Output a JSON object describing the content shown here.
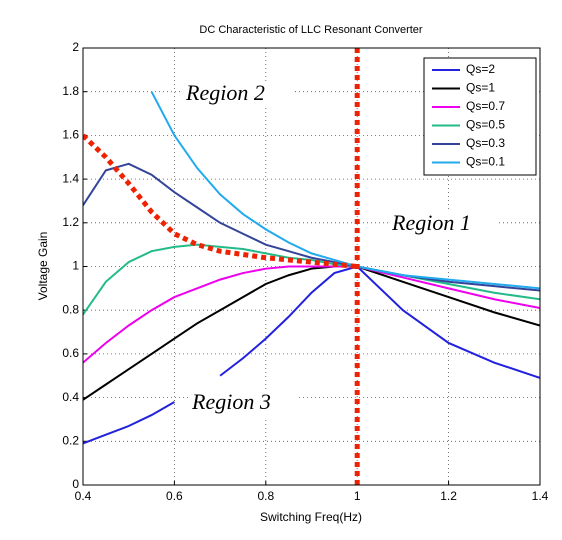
{
  "chart_data": {
    "type": "line",
    "title": "DC Characteristic of LLC Resonant Converter",
    "x_label": "Switching Freq(Hz)",
    "y_label": "Voltage Gain",
    "x": [
      0.4,
      0.45,
      0.5,
      0.55,
      0.6,
      0.65,
      0.7,
      0.75,
      0.8,
      0.85,
      0.9,
      0.95,
      1.0,
      1.1,
      1.2,
      1.3,
      1.4
    ],
    "series": [
      {
        "name": "Qs=2",
        "color": "#2222dd",
        "values": [
          0.19,
          0.23,
          0.27,
          0.32,
          0.38,
          null,
          0.5,
          0.58,
          0.67,
          0.77,
          0.88,
          0.97,
          1.0,
          0.8,
          0.65,
          0.56,
          0.49
        ]
      },
      {
        "name": "Qs=1",
        "color": "#000000",
        "values": [
          0.39,
          0.46,
          0.53,
          0.6,
          0.67,
          0.74,
          0.8,
          0.86,
          0.92,
          0.96,
          0.99,
          1.0,
          1.0,
          0.93,
          0.86,
          0.79,
          0.73
        ]
      },
      {
        "name": "Qs=0.7",
        "color": "#ee00ee",
        "values": [
          0.56,
          0.65,
          0.73,
          0.8,
          0.86,
          0.9,
          0.94,
          0.97,
          0.99,
          1.0,
          1.0,
          1.0,
          1.0,
          0.95,
          0.9,
          0.85,
          0.81
        ]
      },
      {
        "name": "Qs=0.5",
        "color": "#22bb88",
        "values": [
          0.78,
          0.93,
          1.02,
          1.07,
          1.09,
          1.1,
          1.09,
          1.08,
          1.06,
          1.04,
          1.03,
          1.01,
          1.0,
          0.96,
          0.92,
          0.88,
          0.85
        ]
      },
      {
        "name": "Qs=0.3",
        "color": "#334499",
        "values": [
          1.28,
          1.44,
          1.47,
          1.42,
          1.34,
          1.27,
          1.2,
          1.15,
          1.1,
          1.07,
          1.04,
          1.02,
          1.0,
          0.96,
          0.93,
          0.91,
          0.89
        ]
      },
      {
        "name": "Qs=0.1",
        "color": "#22aaee",
        "values": [
          null,
          null,
          null,
          1.8,
          1.6,
          1.45,
          1.33,
          1.24,
          1.17,
          1.11,
          1.06,
          1.03,
          1.0,
          0.96,
          0.94,
          0.92,
          0.9
        ]
      }
    ],
    "boundary": {
      "color": "#ee2200",
      "x": [
        0.4,
        0.45,
        0.5,
        0.55,
        0.6,
        0.65,
        0.7,
        0.8,
        0.9,
        1.0
      ],
      "values": [
        1.6,
        1.5,
        1.38,
        1.25,
        1.15,
        1.1,
        1.07,
        1.04,
        1.02,
        1.0
      ],
      "vertical_x": 1.0
    },
    "annotations": [
      "Region 2",
      "Region 1",
      "Region 3"
    ],
    "xlim": [
      0.4,
      1.4
    ],
    "xticks": [
      0.4,
      0.6,
      0.8,
      1,
      1.2,
      1.4
    ],
    "ylim": [
      0,
      2
    ],
    "yticks": [
      0,
      0.2,
      0.4,
      0.6,
      0.8,
      1,
      1.2,
      1.4,
      1.6,
      1.8,
      2
    ],
    "grid": true,
    "legend": "upper right"
  }
}
